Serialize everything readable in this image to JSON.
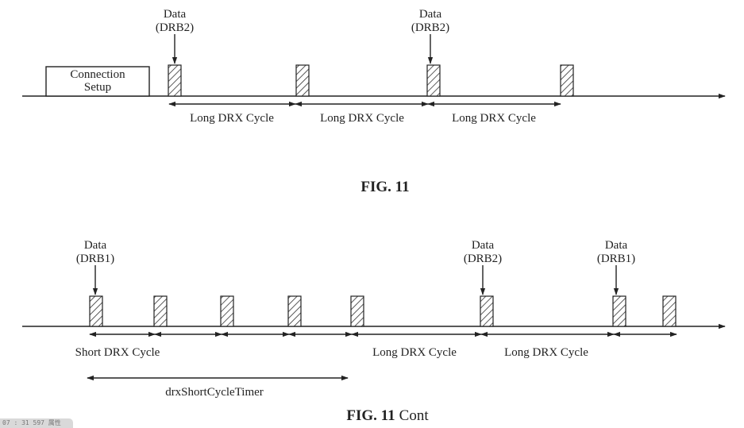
{
  "figure_top": {
    "caption": "FIG. 11",
    "setup_box": {
      "line1": "Connection",
      "line2": "Setup"
    },
    "data_labels": [
      {
        "line1": "Data",
        "line2": "(DRB2)"
      },
      {
        "line1": "Data",
        "line2": "(DRB2)"
      }
    ],
    "cycle_labels": [
      "Long DRX Cycle",
      "Long DRX Cycle",
      "Long DRX Cycle"
    ]
  },
  "figure_bottom": {
    "caption_bold": "FIG. 11",
    "caption_suffix": "Cont",
    "data_labels": [
      {
        "line1": "Data",
        "line2": "(DRB1)"
      },
      {
        "line1": "Data",
        "line2": "(DRB2)"
      },
      {
        "line1": "Data",
        "line2": "(DRB1)"
      }
    ],
    "cycle_labels": [
      "Short DRX Cycle",
      "Long DRX Cycle",
      "Long DRX Cycle"
    ],
    "timer_label": "drxShortCycleTimer"
  },
  "corner_badge": "07 : 31 597 属性"
}
